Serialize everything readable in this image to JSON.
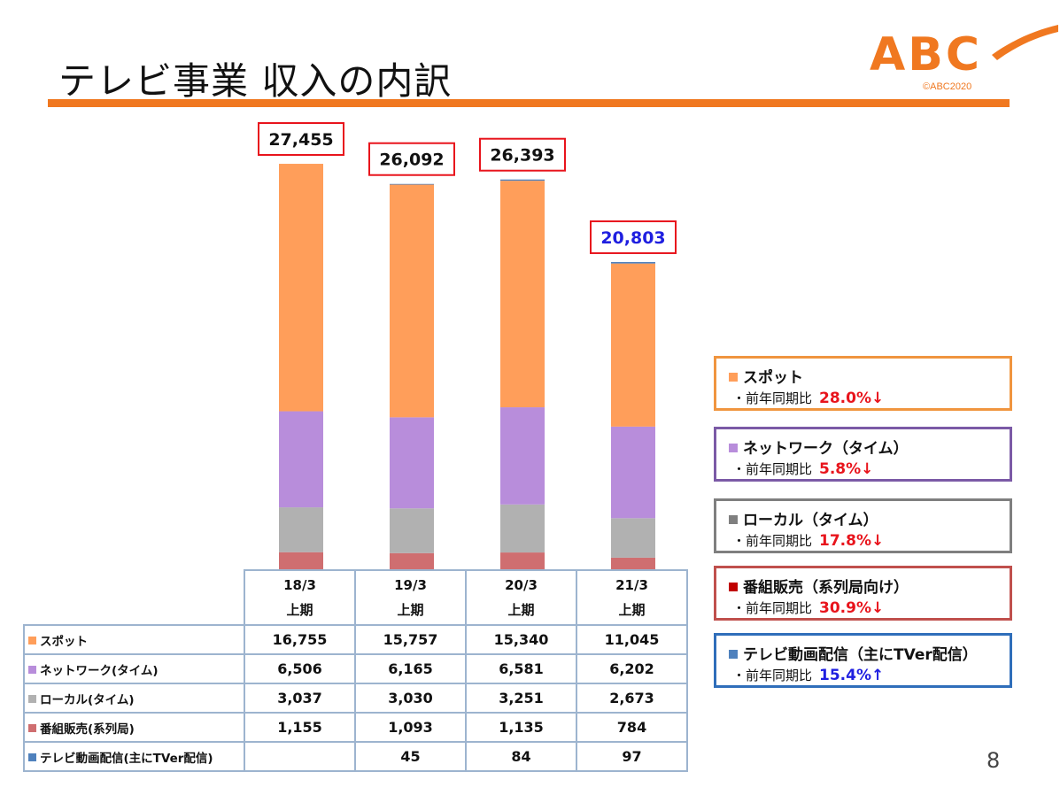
{
  "page": {
    "title": "テレビ事業 収入の内訳",
    "logo_text": "ABC",
    "logo_copyright": "©ABC2020",
    "page_number": "8"
  },
  "colors": {
    "accent": "#F07820",
    "spot": "#FF9E5A",
    "network": "#B88DDB",
    "local": "#B1B1B1",
    "sales": "#CF6E70",
    "video": "#4F81BD",
    "total_box_border": "#E8141C",
    "decrease_text": "#E8141C",
    "increase_text": "#1F1FE0",
    "last_total_text": "#1F1FE0"
  },
  "chart_data": {
    "type": "bar",
    "stacked": true,
    "categories": [
      "18/3 上期",
      "19/3 上期",
      "20/3 上期",
      "21/3 上期"
    ],
    "series": [
      {
        "name": "番組販売(系列局)",
        "values": [
          1155,
          1093,
          1135,
          784
        ]
      },
      {
        "name": "ローカル(タイム)",
        "values": [
          3037,
          3030,
          3251,
          2673
        ]
      },
      {
        "name": "ネットワーク(タイム)",
        "values": [
          6506,
          6165,
          6581,
          6202
        ]
      },
      {
        "name": "スポット",
        "values": [
          16755,
          15757,
          15340,
          11045
        ]
      },
      {
        "name": "テレビ動画配信(主にTVer配信)",
        "values": [
          null,
          45,
          84,
          97
        ]
      }
    ],
    "totals": [
      27455,
      26092,
      26393,
      20803
    ],
    "total_labels": [
      "27,455",
      "26,092",
      "26,393",
      "20,803"
    ],
    "ylim": [
      0,
      28000
    ],
    "grid": false,
    "xlabel": "",
    "ylabel": ""
  },
  "table": {
    "headers": [
      {
        "year": "18/3",
        "period": "上期"
      },
      {
        "year": "19/3",
        "period": "上期"
      },
      {
        "year": "20/3",
        "period": "上期"
      },
      {
        "year": "21/3",
        "period": "上期"
      }
    ],
    "rows": [
      {
        "label": "スポット",
        "color": "#FF9E5A",
        "cells": [
          "16,755",
          "15,757",
          "15,340",
          "11,045"
        ]
      },
      {
        "label": "ネットワーク(タイム)",
        "color": "#B88DDB",
        "cells": [
          "6,506",
          "6,165",
          "6,581",
          "6,202"
        ]
      },
      {
        "label": "ローカル(タイム)",
        "color": "#B1B1B1",
        "cells": [
          "3,037",
          "3,030",
          "3,251",
          "2,673"
        ]
      },
      {
        "label": "番組販売(系列局)",
        "color": "#CF6E70",
        "cells": [
          "1,155",
          "1,093",
          "1,135",
          "784"
        ]
      },
      {
        "label": "テレビ動画配信(主にTVer配信)",
        "color": "#4F81BD",
        "cells": [
          "",
          "45",
          "84",
          "97"
        ]
      }
    ]
  },
  "legend": [
    {
      "name": "スポット",
      "yoy_label": "・前年同期比",
      "yoy_value": "28.0%↓",
      "color": "#FF9E5A",
      "border": "#F0953F",
      "value_color": "#E8141C"
    },
    {
      "name": "ネットワーク（タイム）",
      "yoy_label": "・前年同期比",
      "yoy_value": "5.8%↓",
      "color": "#B88DDB",
      "border": "#7B5AA6",
      "value_color": "#E8141C"
    },
    {
      "name": "ローカル（タイム）",
      "yoy_label": "・前年同期比",
      "yoy_value": "17.8%↓",
      "color": "#7F7F7F",
      "border": "#7F7F7F",
      "value_color": "#E8141C"
    },
    {
      "name": "番組販売（系列局向け）",
      "yoy_label": "・前年同期比",
      "yoy_value": "30.9%↓",
      "color": "#C00000",
      "border": "#C0504D",
      "value_color": "#E8141C"
    },
    {
      "name": "テレビ動画配信（主にTVer配信）",
      "yoy_label": "・前年同期比",
      "yoy_value": "15.4%↑",
      "color": "#4F81BD",
      "border": "#2F6EBA",
      "value_color": "#1F1FE0"
    }
  ]
}
